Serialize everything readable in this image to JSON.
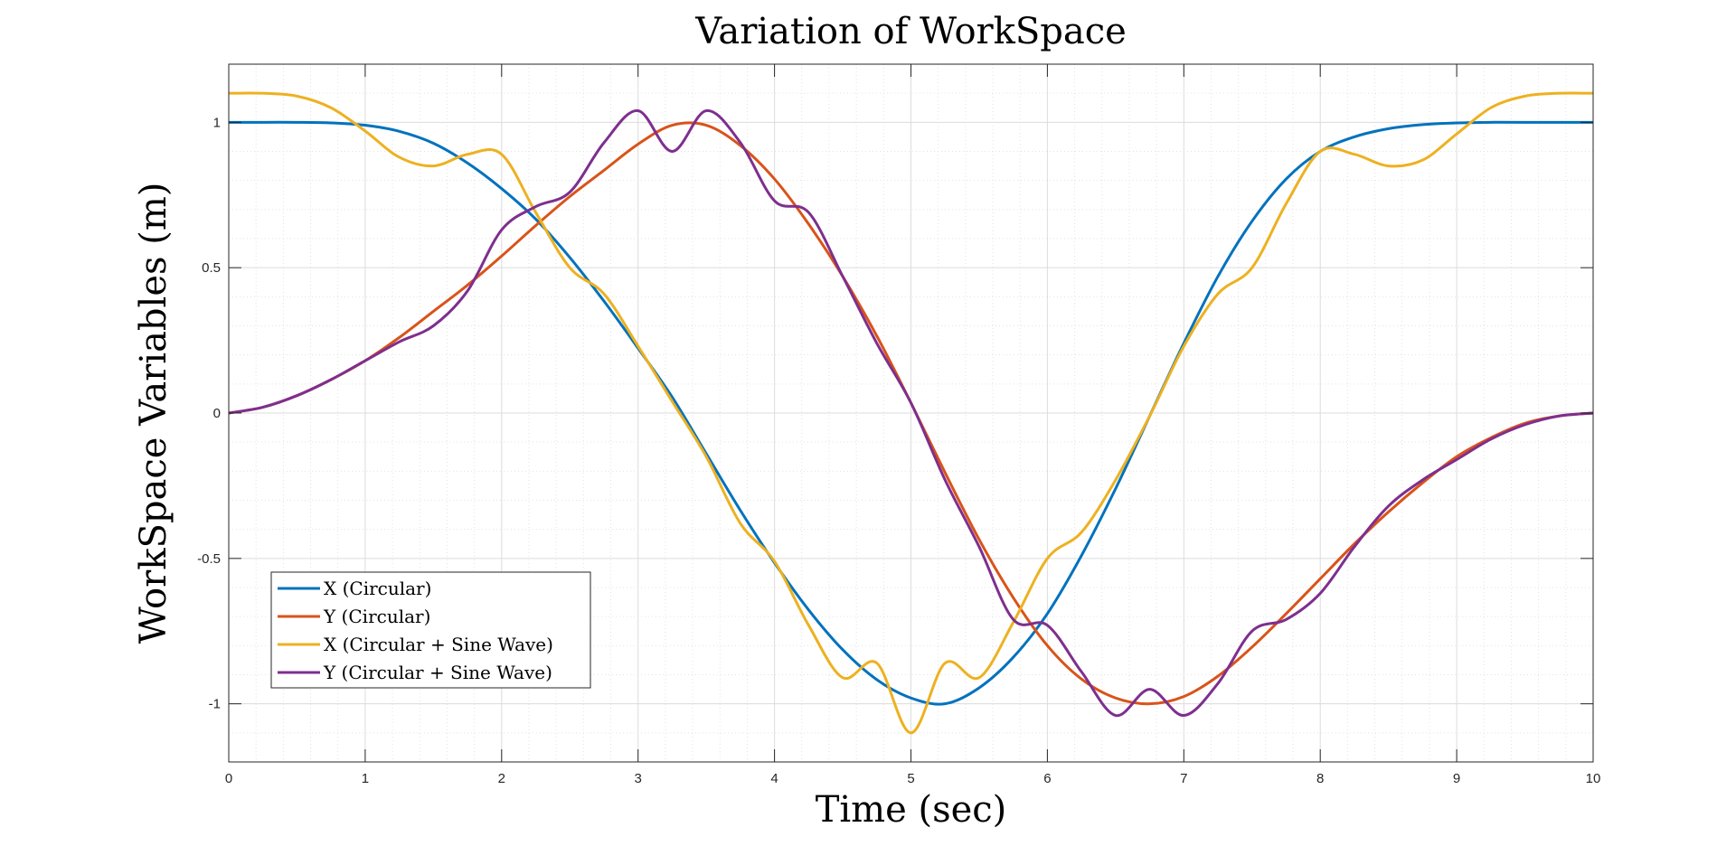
{
  "chart_data": {
    "type": "line",
    "title": "Variation of WorkSpace",
    "xlabel": "Time (sec)",
    "ylabel": "WorkSpace Variables (m)",
    "xlim": [
      0,
      10
    ],
    "ylim": [
      -1.2,
      1.2
    ],
    "xticks": [
      0,
      1,
      2,
      3,
      4,
      5,
      6,
      7,
      8,
      9,
      10
    ],
    "xtick_labels": [
      "0",
      "1",
      "2",
      "3",
      "4",
      "5",
      "6",
      "7",
      "8",
      "9",
      "10"
    ],
    "yticks": [
      -1,
      -0.5,
      0,
      0.5,
      1
    ],
    "ytick_labels": [
      "-1",
      "-0.5",
      "0",
      "0.5",
      "1"
    ],
    "grid": true,
    "minor_grid": true,
    "legend_position": "bottom-left",
    "x": [
      0,
      0.25,
      0.5,
      0.75,
      1,
      1.25,
      1.5,
      1.75,
      2,
      2.25,
      2.5,
      2.75,
      3,
      3.25,
      3.5,
      3.75,
      4,
      4.25,
      4.5,
      4.75,
      5,
      5.25,
      5.5,
      5.75,
      6,
      6.25,
      6.5,
      6.75,
      7,
      7.25,
      7.5,
      7.75,
      8,
      8.25,
      8.5,
      8.75,
      9,
      9.25,
      9.5,
      9.75,
      10
    ],
    "series": [
      {
        "name": "X (Circular)",
        "color": "#0072BD",
        "values": [
          1.0,
          1.0,
          1.0,
          0.998,
          0.99,
          0.969,
          0.928,
          0.86,
          0.772,
          0.667,
          0.535,
          0.385,
          0.223,
          0.055,
          -0.14,
          -0.335,
          -0.515,
          -0.677,
          -0.814,
          -0.917,
          -0.98,
          -1.0,
          -0.945,
          -0.84,
          -0.69,
          -0.49,
          -0.26,
          -0.01,
          0.24,
          0.47,
          0.66,
          0.805,
          0.9,
          0.95,
          0.978,
          0.992,
          0.998,
          1.0,
          1.0,
          1.0,
          1.0
        ]
      },
      {
        "name": "Y (Circular)",
        "color": "#D95319",
        "values": [
          0.0,
          0.02,
          0.06,
          0.115,
          0.18,
          0.26,
          0.35,
          0.44,
          0.54,
          0.645,
          0.745,
          0.835,
          0.925,
          0.99,
          0.99,
          0.92,
          0.805,
          0.65,
          0.47,
          0.265,
          0.035,
          -0.205,
          -0.435,
          -0.635,
          -0.8,
          -0.915,
          -0.98,
          -1.0,
          -0.975,
          -0.905,
          -0.805,
          -0.69,
          -0.57,
          -0.45,
          -0.34,
          -0.24,
          -0.15,
          -0.085,
          -0.035,
          -0.01,
          0.0
        ]
      },
      {
        "name": "X (Circular + Sine Wave)",
        "color": "#EDB120",
        "values": [
          1.1,
          1.1,
          1.09,
          1.05,
          0.97,
          0.88,
          0.85,
          0.89,
          0.89,
          0.69,
          0.5,
          0.41,
          0.23,
          0.04,
          -0.15,
          -0.38,
          -0.51,
          -0.73,
          -0.91,
          -0.86,
          -1.1,
          -0.86,
          -0.91,
          -0.72,
          -0.5,
          -0.41,
          -0.23,
          -0.01,
          0.23,
          0.41,
          0.5,
          0.72,
          0.9,
          0.89,
          0.85,
          0.87,
          0.96,
          1.05,
          1.09,
          1.1,
          1.1
        ]
      },
      {
        "name": "Y (Circular + Sine Wave)",
        "color": "#7E2F8E",
        "values": [
          0.0,
          0.02,
          0.06,
          0.115,
          0.18,
          0.245,
          0.3,
          0.42,
          0.63,
          0.71,
          0.76,
          0.93,
          1.04,
          0.9,
          1.04,
          0.93,
          0.73,
          0.69,
          0.47,
          0.24,
          0.035,
          -0.23,
          -0.46,
          -0.71,
          -0.73,
          -0.89,
          -1.04,
          -0.95,
          -1.04,
          -0.93,
          -0.75,
          -0.71,
          -0.62,
          -0.46,
          -0.32,
          -0.23,
          -0.16,
          -0.09,
          -0.04,
          -0.01,
          0.0
        ]
      }
    ]
  }
}
